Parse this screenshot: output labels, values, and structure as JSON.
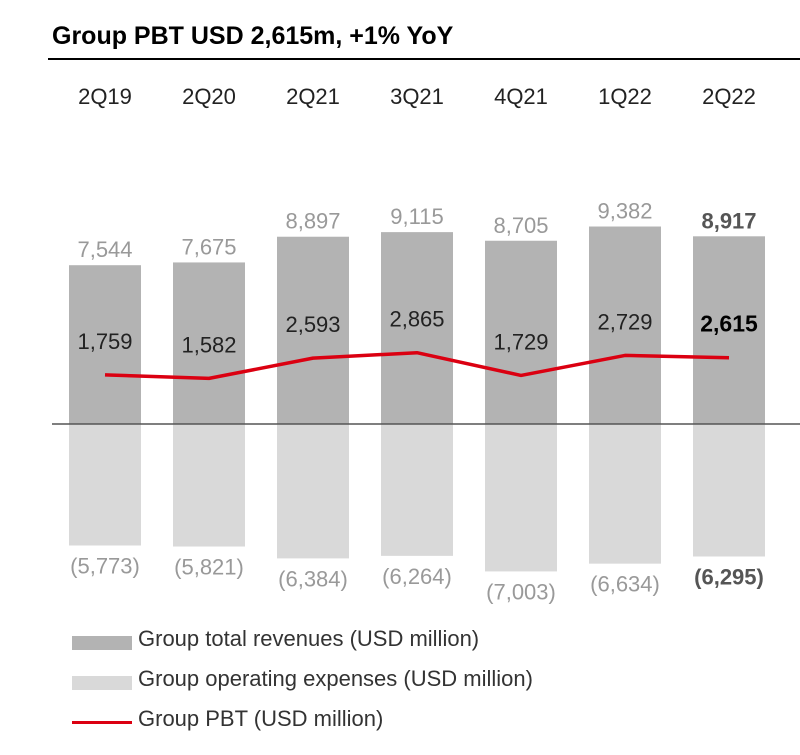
{
  "title": "Group PBT USD 2,615m, +1% YoY",
  "colors": {
    "revenue": "#b3b3b3",
    "expense": "#d9d9d9",
    "pbt": "#db0011",
    "label": "#999999",
    "label_pbt": "#222222",
    "label_highlight": "#555555",
    "axis": "#555555"
  },
  "chart_data": {
    "type": "bar",
    "categories": [
      "2Q19",
      "2Q20",
      "2Q21",
      "3Q21",
      "4Q21",
      "1Q22",
      "2Q22"
    ],
    "series": [
      {
        "name": "Group total revenues (USD million)",
        "values": [
          7544,
          7675,
          8897,
          9115,
          8705,
          9382,
          8917
        ],
        "labels": [
          "7,544",
          "7,675",
          "8,897",
          "9,115",
          "8,705",
          "9,382",
          "8,917"
        ]
      },
      {
        "name": "Group operating expenses (USD million)",
        "values": [
          -5773,
          -5821,
          -6384,
          -6264,
          -7003,
          -6634,
          -6295
        ],
        "labels": [
          "(5,773)",
          "(5,821)",
          "(6,384)",
          "(6,264)",
          "(7,003)",
          "(6,634)",
          "(6,295)"
        ]
      },
      {
        "name": "Group PBT (USD million)",
        "type": "line",
        "values": [
          1759,
          1582,
          2593,
          2865,
          1729,
          2729,
          2615
        ],
        "labels": [
          "1,759",
          "1,582",
          "2,593",
          "2,865",
          "1,729",
          "2,729",
          "2,615"
        ]
      }
    ],
    "highlight_category": "2Q22",
    "legend_position": "bottom-left",
    "grid": false
  },
  "legend": [
    {
      "label": "Group total revenues (USD million)",
      "swatch": "revenue"
    },
    {
      "label": "Group operating expenses (USD million)",
      "swatch": "expense"
    },
    {
      "label": "Group PBT (USD million)",
      "swatch": "pbt"
    }
  ]
}
